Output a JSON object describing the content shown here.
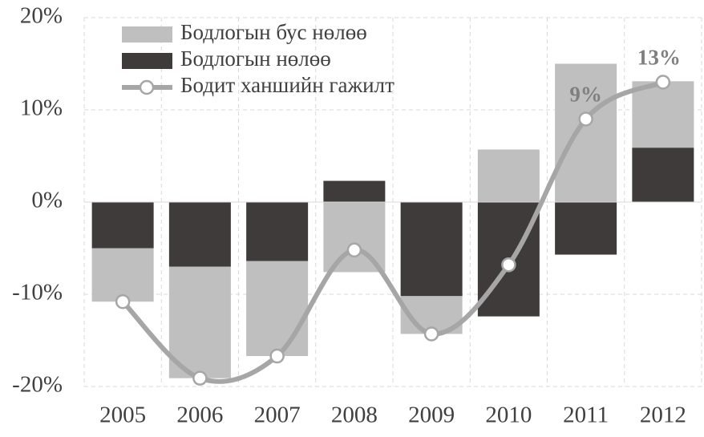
{
  "chart_data": {
    "type": "bar",
    "categories": [
      "2005",
      "2006",
      "2007",
      "2008",
      "2009",
      "2010",
      "2011",
      "2012"
    ],
    "series": [
      {
        "name": "Бодлогын бус нөлөө",
        "color": "#bfbfbf",
        "values": [
          -5.8,
          -12.1,
          -10.3,
          -7.6,
          -4.1,
          5.7,
          15.0,
          7.2
        ]
      },
      {
        "name": "Бодлогын нөлөө",
        "color": "#403b3b",
        "values": [
          -5.0,
          -7.0,
          -6.4,
          2.3,
          -10.2,
          -12.4,
          -5.7,
          5.9
        ]
      },
      {
        "name": "Бодит ханшийн гажилт",
        "type": "line",
        "color": "#a6a6a6",
        "values": [
          -10.8,
          -19.1,
          -16.7,
          -5.2,
          -14.3,
          -6.8,
          9,
          13
        ],
        "value_labels": [
          null,
          null,
          null,
          null,
          null,
          null,
          "9%",
          "13%"
        ]
      }
    ],
    "ylim": [
      -20,
      20
    ],
    "yticks": [
      {
        "value": -20,
        "label": "-20%"
      },
      {
        "value": -10,
        "label": "-10%"
      },
      {
        "value": 0,
        "label": "0%"
      },
      {
        "value": 10,
        "label": "10%"
      },
      {
        "value": 20,
        "label": "20%"
      }
    ],
    "grid": true
  }
}
